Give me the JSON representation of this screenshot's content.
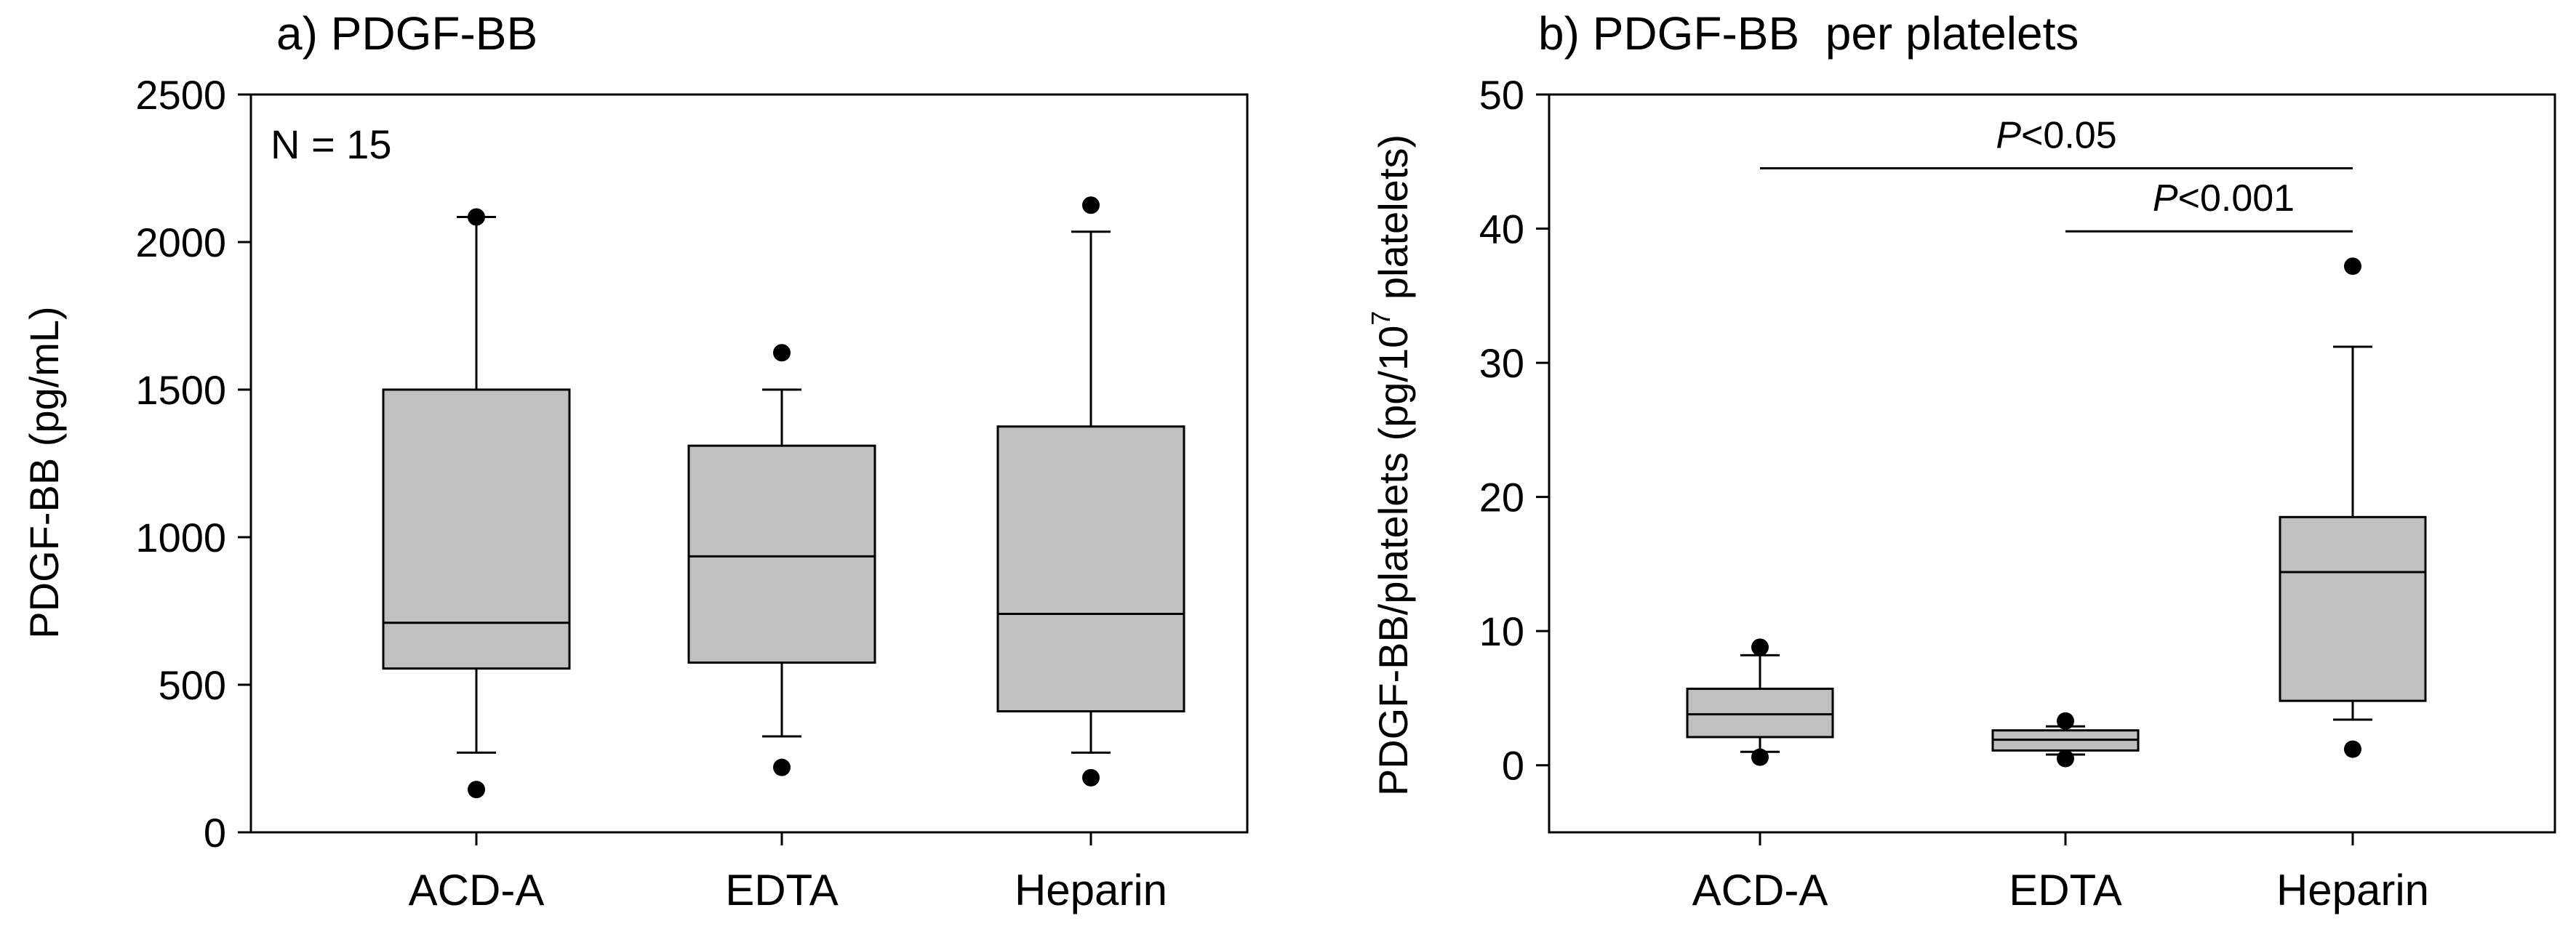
{
  "chart_data": [
    {
      "type": "box",
      "title": "a) PDGF-BB",
      "xlabel": "",
      "ylabel": "PDGF-BB (pg/mL)",
      "ylim": [
        0,
        2500
      ],
      "yticks": [
        0,
        500,
        1000,
        1500,
        2000,
        2500
      ],
      "annotation": "N = 15",
      "categories": [
        "ACD-A",
        "EDTA",
        "Heparin"
      ],
      "boxes": [
        {
          "q1": 555,
          "median": 710,
          "q3": 1500,
          "whisker_low": 270,
          "whisker_high": 2085,
          "outliers": [
            145,
            2085
          ]
        },
        {
          "q1": 575,
          "median": 935,
          "q3": 1310,
          "whisker_low": 325,
          "whisker_high": 1500,
          "outliers": [
            220,
            1625
          ]
        },
        {
          "q1": 410,
          "median": 740,
          "q3": 1375,
          "whisker_low": 270,
          "whisker_high": 2035,
          "outliers": [
            185,
            2125
          ]
        }
      ],
      "significance": []
    },
    {
      "type": "box",
      "title": "b) PDGF-BB  per platelets",
      "xlabel": "",
      "ylabel": "PDGF-BB/platelets (pg/10",
      "ylabel_superscript": "7",
      "ylabel_suffix": " platelets)",
      "ylim": [
        -5,
        50
      ],
      "yticks": [
        0,
        10,
        20,
        30,
        40,
        50
      ],
      "categories": [
        "ACD-A",
        "EDTA",
        "Heparin"
      ],
      "boxes": [
        {
          "q1": 2.1,
          "median": 3.8,
          "q3": 5.7,
          "whisker_low": 1.0,
          "whisker_high": 8.2,
          "outliers": [
            0.6,
            8.8
          ]
        },
        {
          "q1": 1.1,
          "median": 1.9,
          "q3": 2.6,
          "whisker_low": 0.8,
          "whisker_high": 2.9,
          "outliers": [
            0.5,
            3.3
          ]
        },
        {
          "q1": 4.8,
          "median": 14.4,
          "q3": 18.5,
          "whisker_low": 3.4,
          "whisker_high": 31.2,
          "outliers": [
            1.2,
            37.2
          ]
        }
      ],
      "significance": [
        {
          "from": 0,
          "to": 2,
          "y": 44.5,
          "label_italic": "P",
          "label_rest": "<0.05"
        },
        {
          "from": 1,
          "to": 2,
          "y": 39.8,
          "label_italic": "P",
          "label_rest": "<0.001"
        }
      ]
    }
  ]
}
